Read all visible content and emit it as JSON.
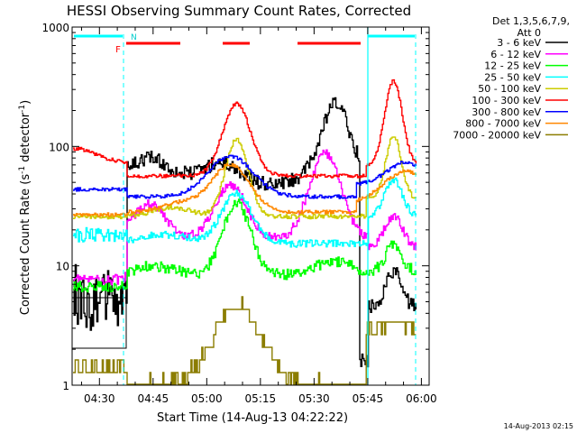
{
  "chart_data": {
    "type": "line",
    "title": "HESSI Observing Summary Count Rates, Corrected",
    "xlabel": "Start Time (14-Aug-13 04:22:22)",
    "ylabel_main": "Corrected Count Rate (s",
    "ylabel_sup1": "-1",
    "ylabel_mid": " detector",
    "ylabel_sup2": "-1",
    "ylabel_end": ")",
    "y_scale": "log",
    "ylim": [
      1,
      1000
    ],
    "y_ticks": [
      "1",
      "10",
      "100",
      "1000"
    ],
    "x_ticks": [
      "04:30",
      "04:45",
      "05:00",
      "05:15",
      "05:30",
      "05:45",
      "06:00"
    ],
    "legend_header": [
      "Det 1,3,5,6,7,9,",
      "Att 0"
    ],
    "footer": "14-Aug-2013 02:15",
    "flags": {
      "F": "F",
      "N": "N"
    },
    "series": [
      {
        "name": "3 - 6 keV",
        "color": "#000000"
      },
      {
        "name": "6 - 12 keV",
        "color": "#ff00ff"
      },
      {
        "name": "12 - 25 keV",
        "color": "#00ff00"
      },
      {
        "name": "25 - 50 keV",
        "color": "#00ffff"
      },
      {
        "name": "50 - 100 keV",
        "color": "#cccc00"
      },
      {
        "name": "100 - 300 keV",
        "color": "#ff0000"
      },
      {
        "name": "300 - 800 keV",
        "color": "#0000ff"
      },
      {
        "name": "800 - 7000 keV",
        "color": "#ff8800"
      },
      {
        "name": "7000 - 20000 keV",
        "color": "#8b7d00"
      }
    ]
  }
}
